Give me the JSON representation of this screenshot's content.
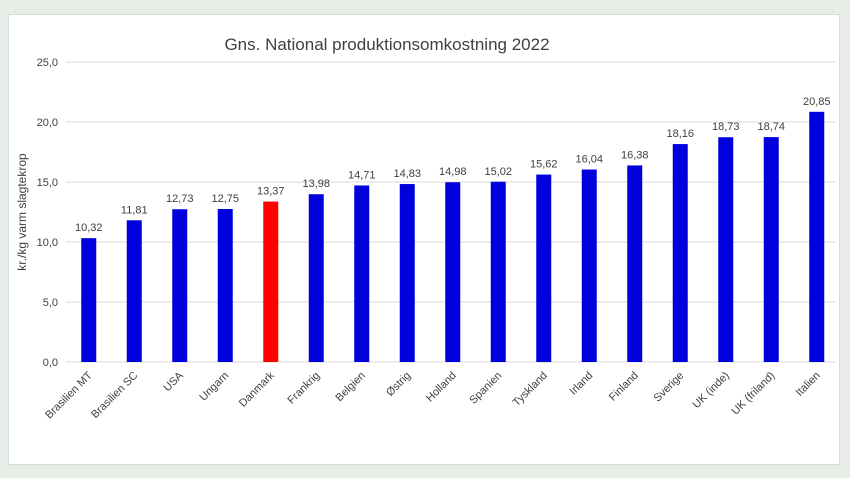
{
  "chart_data": {
    "type": "bar",
    "title": "Gns. National produktionsomkostning 2022",
    "xlabel": "",
    "ylabel": "kr./kg varm slagtekrop",
    "ylim": [
      0,
      25
    ],
    "yticks": [
      "0,0",
      "5,0",
      "10,0",
      "15,0",
      "20,0",
      "25,0"
    ],
    "grid": true,
    "categories": [
      "Brasilien MT",
      "Brasilien SC",
      "USA",
      "Ungarn",
      "Danmark",
      "Frankrig",
      "Belgien",
      "Østrig",
      "Holland",
      "Spanien",
      "Tyskland",
      "Irland",
      "Finland",
      "Sverige",
      "UK (inde)",
      "UK (friland)",
      "Italien"
    ],
    "values": [
      10.32,
      11.81,
      12.73,
      12.75,
      13.37,
      13.98,
      14.71,
      14.83,
      14.98,
      15.02,
      15.62,
      16.04,
      16.38,
      18.16,
      18.73,
      18.74,
      20.85
    ],
    "data_labels": [
      "10,32",
      "11,81",
      "12,73",
      "12,75",
      "13,37",
      "13,98",
      "14,71",
      "14,83",
      "14,98",
      "15,02",
      "15,62",
      "16,04",
      "16,38",
      "18,16",
      "18,73",
      "18,74",
      "20,85"
    ],
    "colors": {
      "default": "#0000dd",
      "highlight": "#ff0000",
      "highlight_category": "Danmark",
      "grid": "#d9d9d9"
    }
  }
}
